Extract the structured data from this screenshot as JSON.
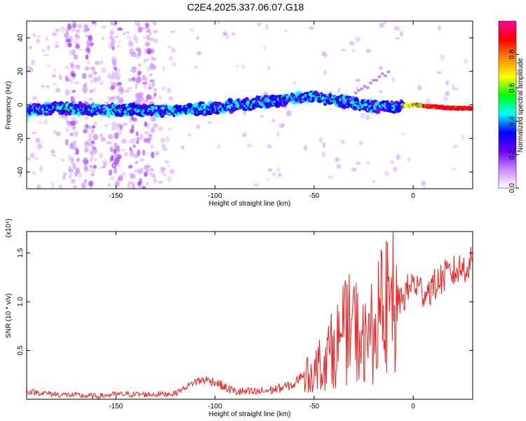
{
  "title": "C2E4.2025.337.06.07.G18",
  "chart_data": [
    {
      "type": "heatmap",
      "xlabel": "Height of straight line (km)",
      "ylabel": "Frequency (Hz)",
      "xlim": [
        -195,
        30
      ],
      "ylim": [
        -50,
        50
      ],
      "xticks": [
        -150,
        -100,
        -50,
        0
      ],
      "xtick_labels": [
        "-150",
        "-100",
        "-50",
        "0"
      ],
      "yticks": [
        -40,
        -20,
        0,
        20,
        40
      ],
      "ytick_labels": [
        "-40",
        "-20",
        "0",
        "20",
        "40"
      ],
      "ridge": {
        "x": [
          -195,
          -180,
          -160,
          -140,
          -120,
          -100,
          -80,
          -60,
          -50,
          -40,
          -30,
          -20,
          -10,
          0,
          10,
          20,
          30
        ],
        "frequency_hz": [
          -3,
          -2,
          -3,
          -3,
          -3,
          -2,
          1,
          4,
          5,
          3,
          1,
          -1,
          -1,
          0,
          -1,
          -2,
          -2
        ]
      },
      "colorbar": {
        "label": "Normalized spectral amplitude",
        "ticks": [
          0.0,
          0.2,
          0.4,
          0.6,
          0.8
        ],
        "tick_labels": [
          "0.0",
          "0.2",
          "0.4",
          "0.6",
          "0.8"
        ],
        "range": [
          0,
          1
        ],
        "colors": [
          "#ffffff",
          "#cc88ff",
          "#6600ff",
          "#0000ff",
          "#00ffff",
          "#00ff00",
          "#ffff00",
          "#ff8800",
          "#ff0000",
          "#ff0099"
        ]
      }
    },
    {
      "type": "line",
      "xlabel": "Height of straight line (km)",
      "ylabel": "SNR (10 * v/v)",
      "multiplier_label": "(x10⁴)",
      "xlim": [
        -195,
        30
      ],
      "ylim": [
        0,
        1.72
      ],
      "xticks": [
        -150,
        -100,
        -50,
        0
      ],
      "xtick_labels": [
        "-150",
        "-100",
        "-50",
        "0"
      ],
      "yticks": [
        0.5,
        1.0,
        1.5
      ],
      "ytick_labels": [
        "0.5",
        "1.0",
        "1.5"
      ],
      "color": "#ee2222",
      "series": [
        {
          "x": [
            -195,
            -180,
            -170,
            -160,
            -150,
            -140,
            -130,
            -120,
            -110,
            -105,
            -100,
            -95,
            -90,
            -80,
            -70,
            -60,
            -55,
            -50,
            -45,
            -40,
            -35,
            -30,
            -25,
            -20,
            -15,
            -10,
            -8,
            -5,
            0,
            5,
            10,
            15,
            20,
            25,
            30
          ],
          "y": [
            0.08,
            0.05,
            0.04,
            0.03,
            0.05,
            0.05,
            0.05,
            0.06,
            0.18,
            0.2,
            0.18,
            0.12,
            0.08,
            0.07,
            0.1,
            0.15,
            0.28,
            0.4,
            0.55,
            0.7,
            0.9,
            1.0,
            0.75,
            0.95,
            1.2,
            1.3,
            1.0,
            1.05,
            1.2,
            1.1,
            1.15,
            1.25,
            1.3,
            1.35,
            1.4
          ]
        }
      ]
    }
  ]
}
